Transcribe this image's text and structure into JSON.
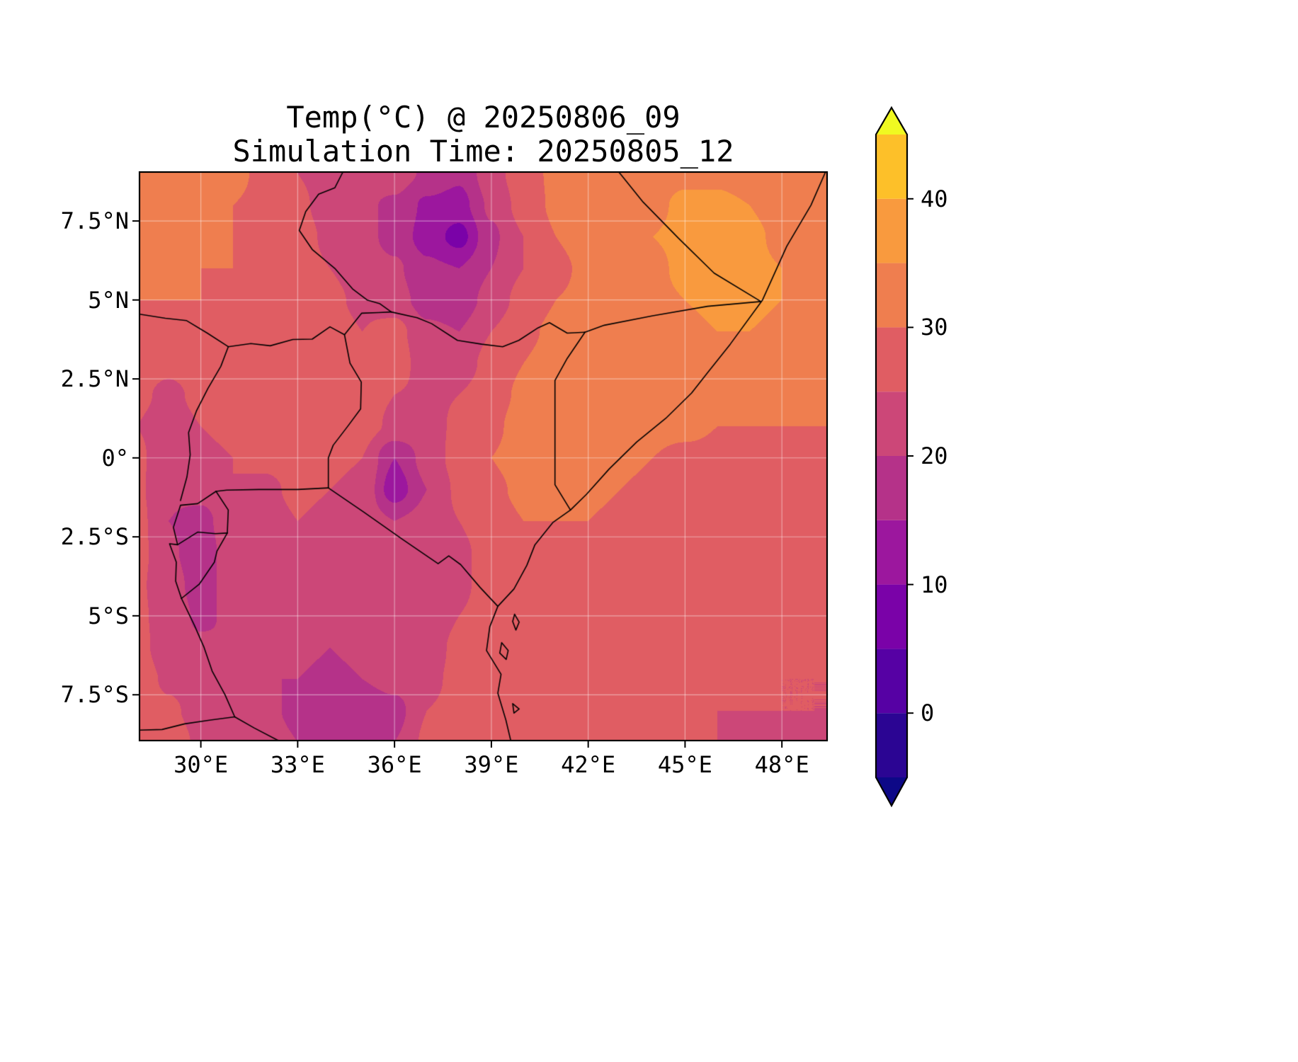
{
  "figure": {
    "title": "Temp(°C) @ 20250806_09",
    "subtitle": "Simulation Time: 20250805_12"
  },
  "axes": {
    "y_ticks": [
      {
        "label": "7.5°N",
        "lat": 7.5
      },
      {
        "label": "5°N",
        "lat": 5.0
      },
      {
        "label": "2.5°N",
        "lat": 2.5
      },
      {
        "label": "0°",
        "lat": 0.0
      },
      {
        "label": "2.5°S",
        "lat": -2.5
      },
      {
        "label": "5°S",
        "lat": -5.0
      },
      {
        "label": "7.5°S",
        "lat": -7.5
      }
    ],
    "x_ticks": [
      {
        "label": "30°E",
        "lon": 30
      },
      {
        "label": "33°E",
        "lon": 33
      },
      {
        "label": "36°E",
        "lon": 36
      },
      {
        "label": "39°E",
        "lon": 39
      },
      {
        "label": "42°E",
        "lon": 42
      },
      {
        "label": "45°E",
        "lon": 45
      },
      {
        "label": "48°E",
        "lon": 48
      }
    ]
  },
  "colorbar": {
    "ticks": [
      {
        "label": "40",
        "value": 40
      },
      {
        "label": "30",
        "value": 30
      },
      {
        "label": "20",
        "value": 20
      },
      {
        "label": "10",
        "value": 10
      },
      {
        "label": "0",
        "value": 0
      }
    ],
    "levels": [
      -5,
      0,
      5,
      10,
      15,
      20,
      25,
      30,
      35,
      40,
      45
    ],
    "band_colors": [
      "#2b0593",
      "#5601a4",
      "#7a02a8",
      "#9c179e",
      "#b53289",
      "#cc4778",
      "#e05d63",
      "#ef7e4f",
      "#f99a3e",
      "#fdc029"
    ],
    "under_color": "#0d0887",
    "over_color": "#f0f921"
  },
  "chart_data": {
    "type": "heatmap",
    "title": "Temp(°C) @ 20250806_09",
    "subtitle": "Simulation Time: 20250805_12",
    "xlabel": "",
    "ylabel": "",
    "units": "°C",
    "lon_range": [
      28.1,
      49.4
    ],
    "lat_range": [
      -8.95,
      9.05
    ],
    "grid": {
      "lon_start": 28,
      "lon_step": 1,
      "n_lon": 22,
      "lat_start": 9,
      "lat_step": -1,
      "n_lat": 19,
      "values": [
        [
          32,
          32,
          31,
          31,
          29,
          25,
          23,
          22,
          23,
          19,
          16,
          23,
          28,
          31,
          32,
          33,
          33,
          34,
          34,
          33,
          32,
          31
        ],
        [
          32,
          32,
          31,
          30,
          29,
          26,
          23,
          21,
          19,
          14,
          13,
          21,
          27,
          31,
          32,
          33,
          34,
          36,
          36,
          35,
          33,
          31
        ],
        [
          31,
          32,
          31,
          30,
          29,
          27,
          24,
          22,
          18,
          13,
          8,
          19,
          25,
          30,
          32,
          33,
          35,
          36,
          37,
          36,
          34,
          32
        ],
        [
          31,
          31,
          30,
          30,
          29,
          27,
          25,
          23,
          21,
          16,
          15,
          20,
          25,
          29,
          31,
          33,
          34,
          36,
          36,
          36,
          35,
          33
        ],
        [
          30,
          30,
          30,
          29,
          30,
          28,
          26,
          24,
          22,
          18,
          17,
          22,
          27,
          30,
          31,
          32,
          34,
          35,
          36,
          36,
          35,
          33
        ],
        [
          28,
          29,
          29,
          28,
          30,
          29,
          27,
          25,
          27,
          21,
          20,
          25,
          29,
          31,
          31,
          32,
          33,
          34,
          35,
          35,
          34,
          33
        ],
        [
          27,
          26,
          27,
          28,
          29,
          30,
          28,
          26,
          28,
          22,
          22,
          27,
          30,
          32,
          32,
          32,
          33,
          34,
          34,
          33,
          32,
          32
        ],
        [
          26,
          24,
          26,
          27,
          28,
          29,
          28,
          27,
          25,
          24,
          25,
          28,
          31,
          32,
          33,
          33,
          33,
          33,
          32,
          32,
          31,
          31
        ],
        [
          25,
          23,
          25,
          26,
          27,
          28,
          28,
          27,
          24,
          23,
          26,
          29,
          32,
          33,
          33,
          32,
          31,
          31,
          30,
          30,
          30,
          30
        ],
        [
          26,
          22,
          24,
          25,
          26,
          27,
          26,
          25,
          15,
          22,
          27,
          30,
          32,
          33,
          32,
          31,
          30,
          29,
          29,
          29,
          29,
          29
        ],
        [
          26,
          21,
          22,
          25,
          24,
          26,
          25,
          24,
          12,
          20,
          26,
          29,
          31,
          32,
          31,
          30,
          29,
          29,
          29,
          29,
          29,
          28
        ],
        [
          27,
          20,
          18,
          24,
          23,
          25,
          24,
          23,
          20,
          22,
          25,
          28,
          30,
          30,
          30,
          29,
          29,
          28,
          28,
          28,
          28,
          28
        ],
        [
          27,
          21,
          17,
          23,
          24,
          24,
          23,
          22,
          21,
          20,
          24,
          27,
          29,
          29,
          29,
          29,
          28,
          28,
          28,
          28,
          28,
          27
        ],
        [
          26,
          22,
          18,
          22,
          23,
          23,
          22,
          21,
          20,
          21,
          24,
          27,
          28,
          29,
          29,
          28,
          28,
          28,
          28,
          27,
          27,
          27
        ],
        [
          26,
          23,
          19,
          21,
          22,
          22,
          21,
          20,
          21,
          22,
          25,
          27,
          28,
          28,
          28,
          28,
          28,
          27,
          27,
          27,
          26,
          26
        ],
        [
          27,
          22,
          21,
          20,
          21,
          21,
          20,
          21,
          22,
          23,
          26,
          27,
          28,
          28,
          28,
          28,
          27,
          27,
          27,
          26,
          26,
          26
        ],
        [
          28,
          24,
          22,
          21,
          20,
          20,
          19,
          20,
          22,
          24,
          26,
          27,
          28,
          28,
          28,
          27,
          27,
          26,
          26,
          26,
          25,
          25
        ],
        [
          29,
          26,
          23,
          22,
          21,
          19,
          18,
          16,
          18,
          25,
          26,
          27,
          28,
          28,
          28,
          27,
          26,
          26,
          25,
          25,
          25,
          25
        ],
        [
          30,
          28,
          24,
          23,
          22,
          20,
          19,
          17,
          20,
          26,
          27,
          27,
          28,
          28,
          27,
          27,
          26,
          25,
          25,
          24,
          24,
          24
        ]
      ]
    },
    "borders": [
      {
        "name": "coastline",
        "points": [
          [
            49.35,
            9.05
          ],
          [
            48.9,
            8.0
          ],
          [
            48.15,
            6.7
          ],
          [
            47.4,
            5.0
          ],
          [
            46.4,
            3.6
          ],
          [
            45.7,
            2.7
          ],
          [
            45.2,
            2.05
          ],
          [
            44.4,
            1.25
          ],
          [
            43.5,
            0.5
          ],
          [
            42.65,
            -0.35
          ],
          [
            41.95,
            -1.15
          ],
          [
            41.45,
            -1.65
          ],
          [
            40.9,
            -2.05
          ],
          [
            40.35,
            -2.75
          ],
          [
            40.1,
            -3.4
          ],
          [
            39.7,
            -4.15
          ],
          [
            39.2,
            -4.7
          ],
          [
            38.95,
            -5.35
          ],
          [
            38.85,
            -6.1
          ],
          [
            39.3,
            -6.85
          ],
          [
            39.2,
            -7.45
          ],
          [
            39.45,
            -8.3
          ],
          [
            39.6,
            -8.95
          ]
        ]
      },
      {
        "name": "ethiopia-somalia-border",
        "points": [
          [
            42.95,
            9.05
          ],
          [
            43.7,
            8.1
          ],
          [
            44.8,
            6.95
          ],
          [
            45.9,
            5.85
          ],
          [
            47.35,
            4.95
          ],
          [
            45.7,
            4.8
          ],
          [
            44.0,
            4.5
          ],
          [
            42.5,
            4.2
          ],
          [
            41.9,
            3.98
          ]
        ]
      },
      {
        "name": "kenya-somalia-border",
        "points": [
          [
            41.9,
            3.98
          ],
          [
            41.35,
            3.15
          ],
          [
            40.97,
            2.45
          ],
          [
            40.97,
            0.6
          ],
          [
            40.97,
            -0.85
          ],
          [
            41.45,
            -1.65
          ]
        ]
      },
      {
        "name": "ethiopia-kenya-border",
        "points": [
          [
            35.9,
            4.62
          ],
          [
            36.7,
            4.44
          ],
          [
            37.15,
            4.25
          ],
          [
            37.95,
            3.72
          ],
          [
            38.7,
            3.6
          ],
          [
            39.35,
            3.52
          ],
          [
            39.85,
            3.72
          ],
          [
            40.45,
            4.12
          ],
          [
            40.8,
            4.28
          ],
          [
            41.35,
            3.95
          ],
          [
            41.9,
            3.98
          ]
        ]
      },
      {
        "name": "south-sudan-uganda-border",
        "points": [
          [
            28.1,
            4.55
          ],
          [
            28.9,
            4.42
          ],
          [
            29.55,
            4.35
          ],
          [
            30.2,
            3.95
          ],
          [
            30.85,
            3.52
          ],
          [
            31.55,
            3.62
          ],
          [
            32.15,
            3.55
          ],
          [
            32.85,
            3.75
          ],
          [
            33.45,
            3.76
          ],
          [
            34.0,
            4.15
          ],
          [
            34.45,
            3.9
          ],
          [
            34.98,
            4.58
          ],
          [
            35.5,
            4.6
          ],
          [
            35.9,
            4.62
          ]
        ]
      },
      {
        "name": "ethiopia-south-sudan-border",
        "points": [
          [
            34.4,
            9.05
          ],
          [
            34.15,
            8.55
          ],
          [
            33.65,
            8.35
          ],
          [
            33.25,
            7.8
          ],
          [
            33.05,
            7.2
          ],
          [
            33.45,
            6.6
          ],
          [
            34.15,
            6.0
          ],
          [
            34.7,
            5.35
          ],
          [
            35.15,
            5.0
          ],
          [
            35.55,
            4.88
          ],
          [
            35.9,
            4.62
          ]
        ]
      },
      {
        "name": "uganda-kenya-border",
        "points": [
          [
            34.45,
            3.9
          ],
          [
            34.62,
            3.0
          ],
          [
            34.97,
            2.4
          ],
          [
            34.95,
            1.55
          ],
          [
            34.55,
            1.0
          ],
          [
            34.1,
            0.4
          ],
          [
            33.95,
            0.0
          ],
          [
            33.95,
            -0.95
          ]
        ]
      },
      {
        "name": "uganda-drc-border",
        "points": [
          [
            30.85,
            3.52
          ],
          [
            30.62,
            2.9
          ],
          [
            30.22,
            2.2
          ],
          [
            29.87,
            1.5
          ],
          [
            29.62,
            0.8
          ],
          [
            29.67,
            0.1
          ],
          [
            29.57,
            -0.6
          ],
          [
            29.37,
            -1.35
          ]
        ]
      },
      {
        "name": "tanzania-uganda-border",
        "points": [
          [
            33.95,
            -0.95
          ],
          [
            33.0,
            -1.0
          ],
          [
            31.8,
            -1.0
          ],
          [
            30.8,
            -1.02
          ],
          [
            30.47,
            -1.06
          ]
        ]
      },
      {
        "name": "rwanda-drc-border",
        "points": [
          [
            30.47,
            -1.06
          ],
          [
            29.9,
            -1.45
          ],
          [
            29.37,
            -1.5
          ],
          [
            29.15,
            -2.2
          ],
          [
            29.28,
            -2.75
          ],
          [
            29.03,
            -2.72
          ],
          [
            29.24,
            -3.3
          ],
          [
            29.22,
            -3.9
          ],
          [
            29.4,
            -4.45
          ]
        ]
      },
      {
        "name": "rwanda-tanzania-border",
        "points": [
          [
            30.47,
            -1.06
          ],
          [
            30.85,
            -1.65
          ],
          [
            30.82,
            -2.38
          ]
        ]
      },
      {
        "name": "rwanda-burundi-border",
        "points": [
          [
            29.28,
            -2.75
          ],
          [
            29.9,
            -2.35
          ],
          [
            30.45,
            -2.4
          ],
          [
            30.82,
            -2.38
          ]
        ]
      },
      {
        "name": "burundi-tanzania-border",
        "points": [
          [
            30.82,
            -2.38
          ],
          [
            30.5,
            -2.95
          ],
          [
            30.42,
            -3.3
          ],
          [
            29.95,
            -4.0
          ],
          [
            29.4,
            -4.45
          ]
        ]
      },
      {
        "name": "tanzania-drc-border",
        "points": [
          [
            29.4,
            -4.45
          ],
          [
            29.8,
            -5.3
          ],
          [
            30.1,
            -6.0
          ],
          [
            30.35,
            -6.75
          ],
          [
            30.75,
            -7.5
          ],
          [
            31.05,
            -8.2
          ]
        ]
      },
      {
        "name": "tanzania-zambia-border",
        "points": [
          [
            31.05,
            -8.2
          ],
          [
            31.65,
            -8.55
          ],
          [
            32.4,
            -8.95
          ]
        ]
      },
      {
        "name": "drc-zambia-border",
        "points": [
          [
            31.05,
            -8.2
          ],
          [
            30.3,
            -8.3
          ],
          [
            29.5,
            -8.42
          ],
          [
            28.8,
            -8.6
          ],
          [
            28.1,
            -8.62
          ]
        ]
      },
      {
        "name": "kenya-tanzania-border",
        "points": [
          [
            33.95,
            -0.95
          ],
          [
            35.05,
            -1.72
          ],
          [
            36.25,
            -2.58
          ],
          [
            37.35,
            -3.35
          ],
          [
            37.68,
            -3.1
          ],
          [
            38.05,
            -3.38
          ],
          [
            38.65,
            -4.1
          ],
          [
            39.2,
            -4.7
          ]
        ]
      },
      {
        "name": "zanzibar-island",
        "points": [
          [
            39.32,
            -5.85
          ],
          [
            39.52,
            -6.1
          ],
          [
            39.46,
            -6.38
          ],
          [
            39.26,
            -6.18
          ],
          [
            39.32,
            -5.85
          ]
        ]
      },
      {
        "name": "pemba-island",
        "points": [
          [
            39.72,
            -4.95
          ],
          [
            39.86,
            -5.2
          ],
          [
            39.76,
            -5.45
          ],
          [
            39.66,
            -5.18
          ],
          [
            39.72,
            -4.95
          ]
        ]
      },
      {
        "name": "mafia-island",
        "points": [
          [
            39.66,
            -7.78
          ],
          [
            39.86,
            -7.95
          ],
          [
            39.7,
            -8.08
          ],
          [
            39.66,
            -7.78
          ]
        ]
      }
    ]
  }
}
